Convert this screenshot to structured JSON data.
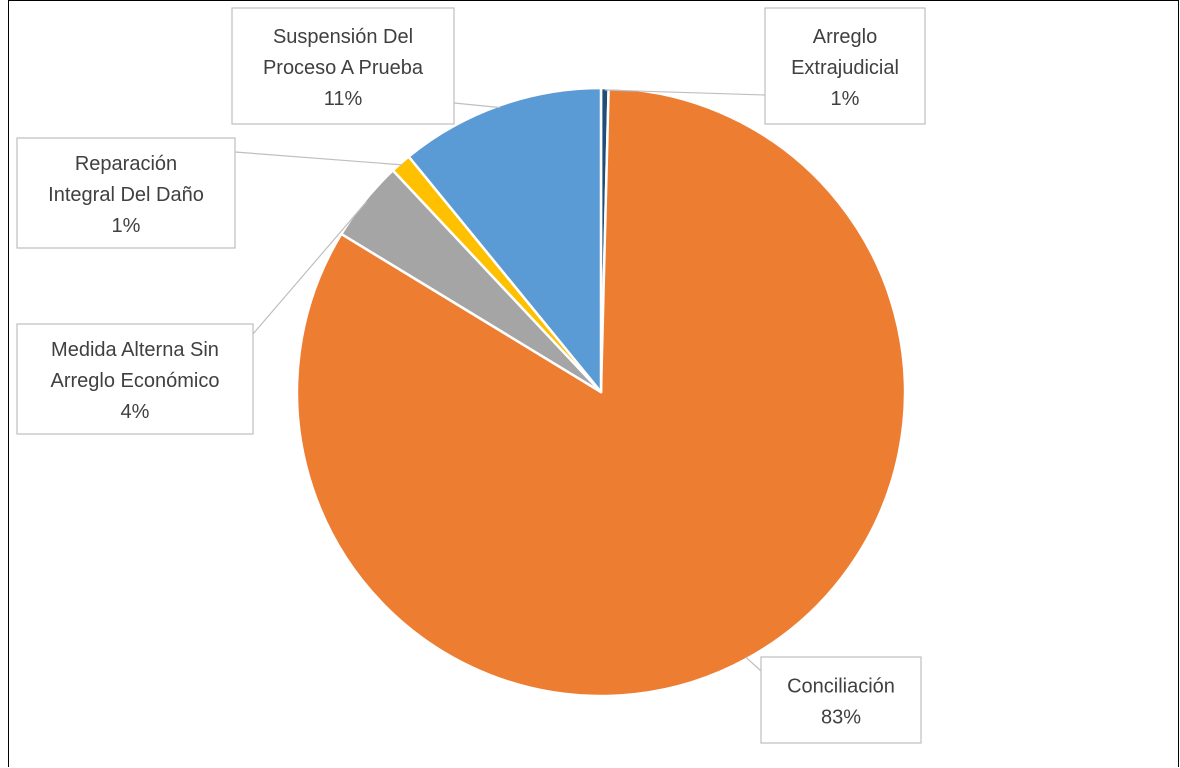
{
  "chart_data": {
    "type": "pie",
    "title": "",
    "slices": [
      {
        "label_lines": [
          "Arreglo",
          "Extrajudicial"
        ],
        "name": "Arreglo Extrajudicial",
        "percent_label": "1%",
        "value": 0.4,
        "color": "#1f4e79"
      },
      {
        "label_lines": [
          "Conciliación"
        ],
        "name": "Conciliación",
        "percent_label": "83%",
        "value": 83.3,
        "color": "#ed7d31"
      },
      {
        "label_lines": [
          "Medida Alterna Sin",
          "Arreglo Económico"
        ],
        "name": "Medida Alterna Sin Arreglo Económico",
        "percent_label": "4%",
        "value": 4.3,
        "color": "#a5a5a5"
      },
      {
        "label_lines": [
          "Reparación",
          "Integral Del Daño"
        ],
        "name": "Reparación Integral Del Daño",
        "percent_label": "1%",
        "value": 1.1,
        "color": "#ffc000"
      },
      {
        "label_lines": [
          "Suspensión Del",
          "Proceso A Prueba"
        ],
        "name": "Suspensión Del Proceso A Prueba",
        "percent_label": "11%",
        "value": 10.9,
        "color": "#5b9bd5"
      }
    ],
    "start_angle_deg": 0,
    "direction": "clockwise",
    "data_labels": "outside-with-leader-lines",
    "legend": "none",
    "background": "#ffffff"
  }
}
